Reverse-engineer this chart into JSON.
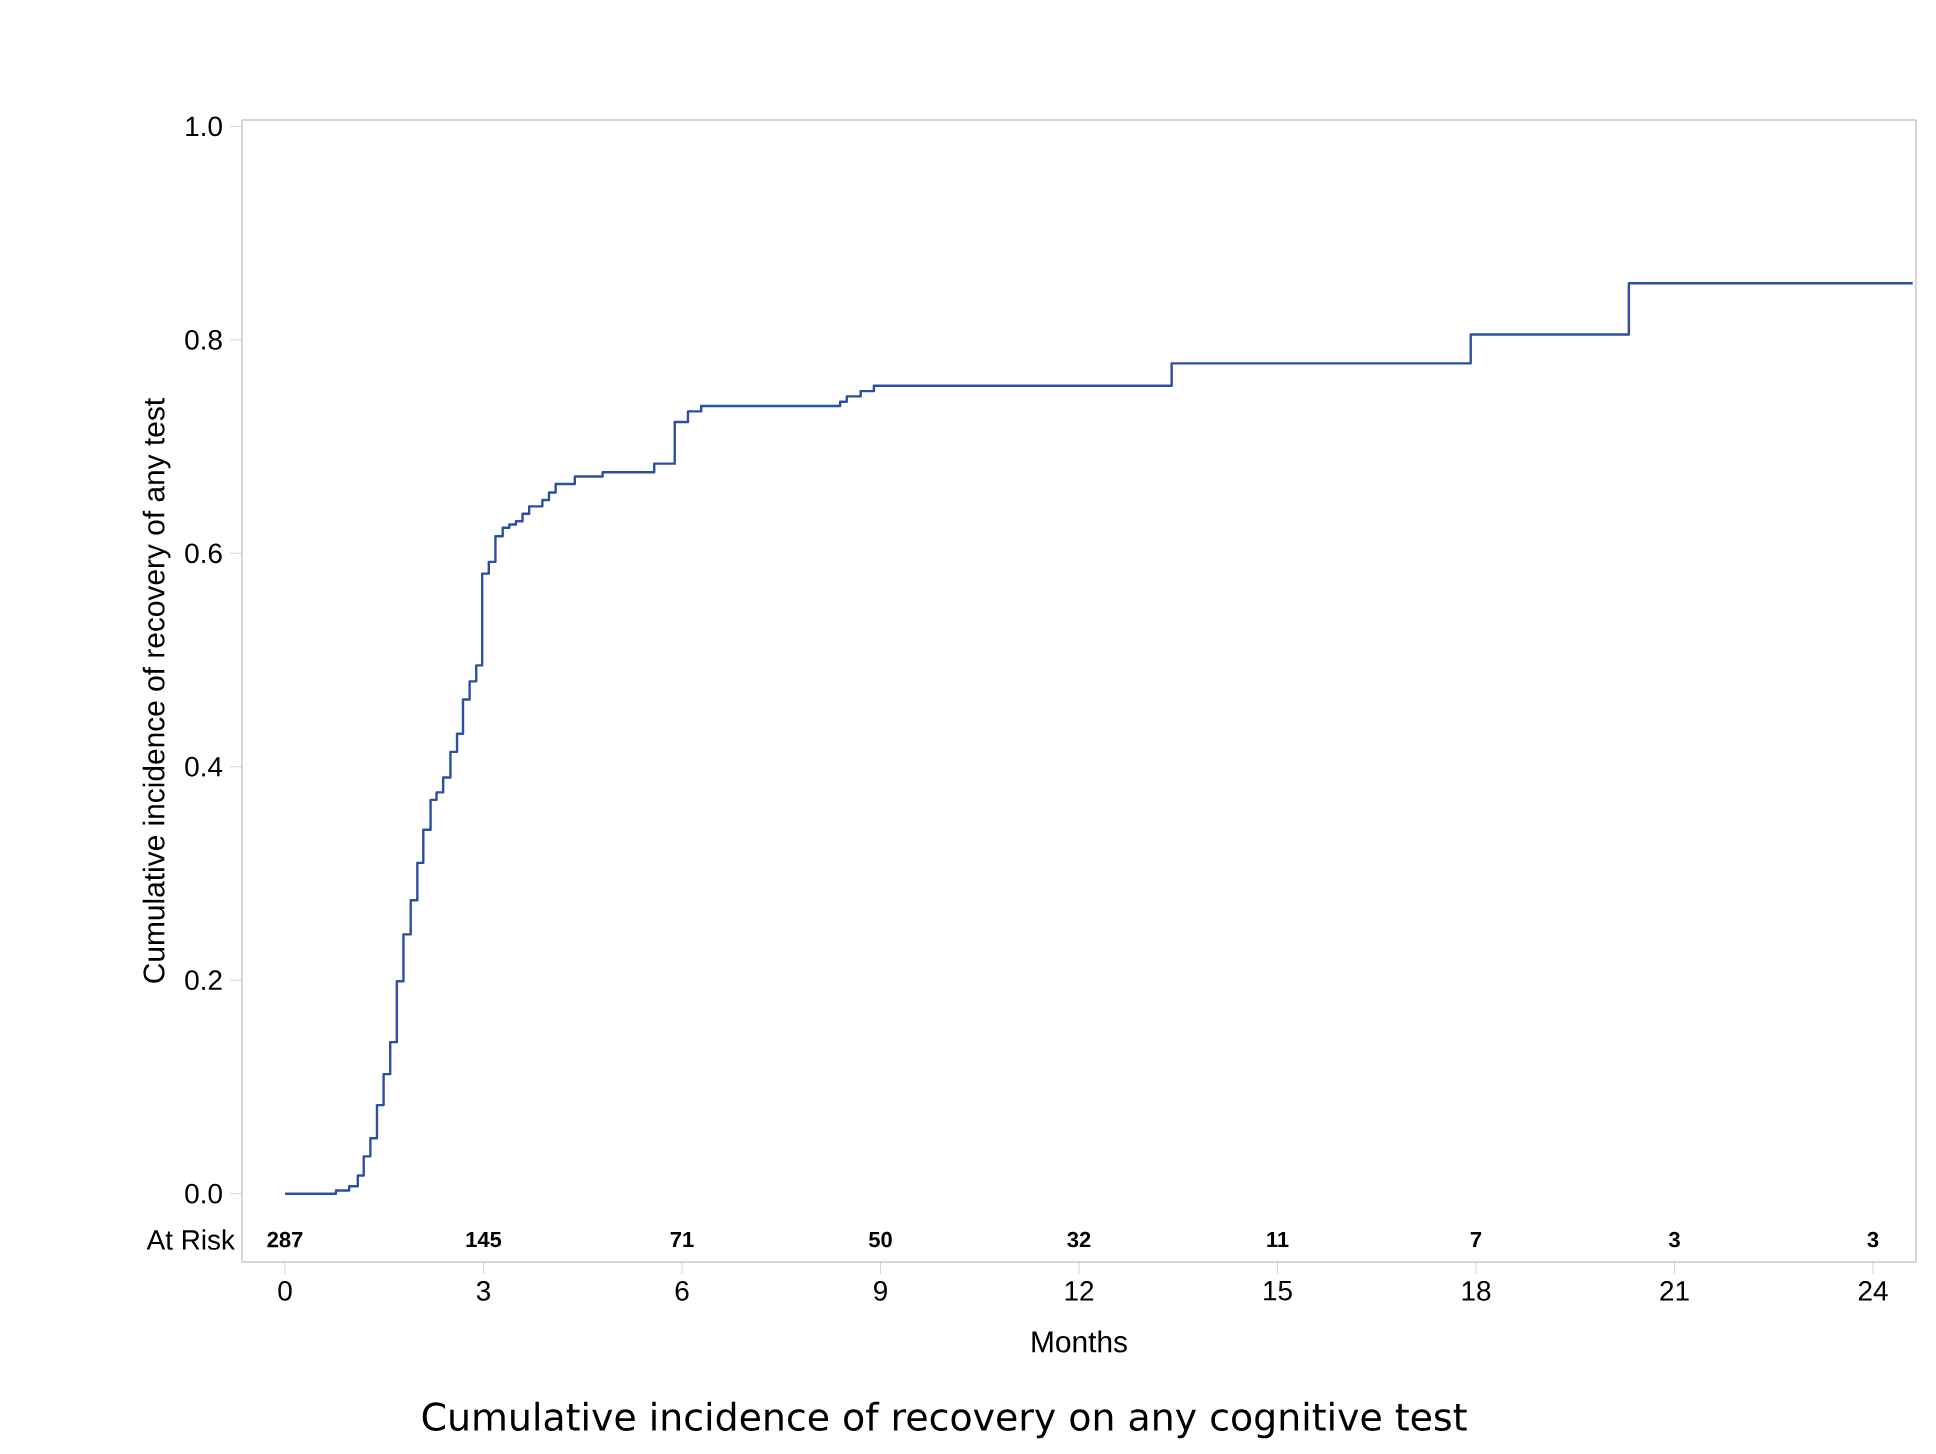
{
  "chart_data": {
    "type": "step",
    "xlabel": "Months",
    "ylabel": "Cumulative incidence of recovery of any test",
    "xlim": [
      -0.65,
      24.65
    ],
    "ylim": [
      -0.064,
      1.006
    ],
    "xticks": [
      0,
      3,
      6,
      9,
      12,
      15,
      18,
      21,
      24
    ],
    "yticks": [
      {
        "value": 0,
        "label": "0.0"
      },
      {
        "value": 0.2,
        "label": "0.2"
      },
      {
        "value": 0.4,
        "label": "0.4"
      },
      {
        "value": 0.6,
        "label": "0.6"
      },
      {
        "value": 0.8,
        "label": "0.8"
      },
      {
        "value": 1,
        "label": "1.0"
      }
    ],
    "grid": false,
    "marker": "none",
    "line_style": "solid",
    "series": [
      {
        "color": "#2b4fa3",
        "x": [
          0,
          0.77,
          0.97,
          1.1,
          1.19,
          1.29,
          1.39,
          1.49,
          1.59,
          1.69,
          1.79,
          1.9,
          2.0,
          2.09,
          2.2,
          2.29,
          2.39,
          2.5,
          2.6,
          2.69,
          2.79,
          2.89,
          2.98,
          3.08,
          3.18,
          3.29,
          3.39,
          3.49,
          3.59,
          3.69,
          3.89,
          3.99,
          4.09,
          4.38,
          4.8,
          5.58,
          5.89,
          6.09,
          6.29,
          8.39,
          8.49,
          8.7,
          8.9,
          13.4,
          17.92,
          20.31,
          24.6
        ],
        "values": [
          0,
          0.003,
          0.007,
          0.017,
          0.035,
          0.052,
          0.083,
          0.112,
          0.142,
          0.199,
          0.243,
          0.275,
          0.31,
          0.341,
          0.369,
          0.376,
          0.39,
          0.414,
          0.431,
          0.463,
          0.48,
          0.495,
          0.581,
          0.592,
          0.616,
          0.624,
          0.627,
          0.63,
          0.637,
          0.644,
          0.65,
          0.657,
          0.665,
          0.672,
          0.676,
          0.684,
          0.723,
          0.733,
          0.738,
          0.742,
          0.747,
          0.752,
          0.757,
          0.778,
          0.805,
          0.853,
          0.853
        ]
      }
    ],
    "annotations": [
      "At Risk",
      "287",
      "145",
      "71",
      "50",
      "32",
      "11",
      "7",
      "3",
      "3",
      "Cumulative incidence of recovery on any cognitive test"
    ]
  }
}
